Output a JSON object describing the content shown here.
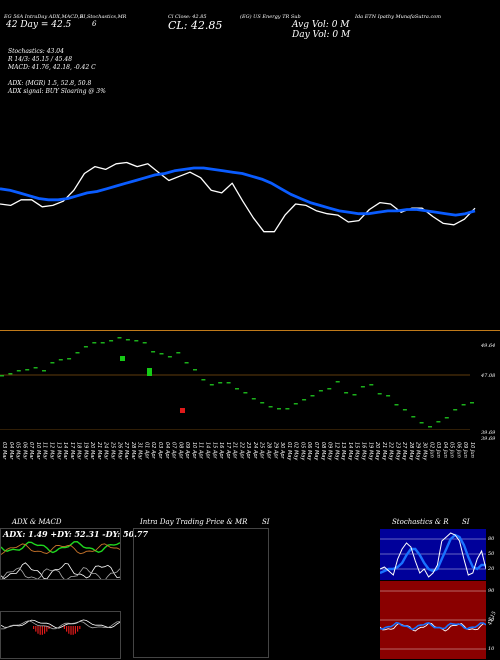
{
  "header": {
    "ticker_line": "EG 56A IntraDay ADX,MACD,B",
    "si_label": "SI,Stochastics,MR",
    "stats_line": "Cl Close: 42.85",
    "company": "(EG) US Energy TR Sub",
    "desc_right": "Ida ETN  Ipathy MunafaSutra.com",
    "price_range": "42 Day = 42.5",
    "num_6": "6",
    "cl_text": "CL: 42.85",
    "avg_vol": "Avg Vol: 0  M",
    "day_vol": "Day Vol: 0  M"
  },
  "indicators": {
    "stochastics": "Stochastics: 43.04",
    "r_line": "R         14/3: 45.15 / 45.48",
    "macd": "MACD: 41.76, 42.18, -0.42  C",
    "adx": "ADX:                    (MGR) 1.5, 52.8, 50.8",
    "adx_signal": "ADX  signal:                     BUY Sloaring @ 3%"
  },
  "volume_panel": {
    "right_labels": [
      "49.64",
      "47.08",
      "39.69",
      "39.69"
    ]
  },
  "dates": [
    "03 Mar",
    "04 Mar",
    "05 Mar",
    "06 Mar",
    "07 Mar",
    "10 Mar",
    "11 Mar",
    "12 Mar",
    "13 Mar",
    "14 Mar",
    "17 Mar",
    "18 Mar",
    "19 Mar",
    "20 Mar",
    "21 Mar",
    "24 Mar",
    "25 Mar",
    "26 Mar",
    "27 Mar",
    "28 Mar",
    "31 Mar",
    "01 Apr",
    "02 Apr",
    "03 Apr",
    "04 Apr",
    "07 Apr",
    "08 Apr",
    "09 Apr",
    "10 Apr",
    "11 Apr",
    "14 Apr",
    "15 Apr",
    "16 Apr",
    "17 Apr",
    "21 Apr",
    "22 Apr",
    "23 Apr",
    "24 Apr",
    "25 Apr",
    "28 Apr",
    "29 Apr",
    "30 Apr",
    "01 May",
    "02 May",
    "05 May",
    "06 May",
    "07 May",
    "08 May",
    "09 May",
    "12 May",
    "13 May",
    "14 May",
    "15 May",
    "16 May",
    "19 May",
    "20 May",
    "21 May",
    "22 May",
    "23 May",
    "27 May",
    "28 May",
    "29 May",
    "30 May",
    "02 Jun",
    "03 Jun",
    "04 Jun",
    "05 Jun",
    "06 Jun",
    "09 Jun",
    "10 Jun"
  ],
  "panels": {
    "adx_title": "ADX  & MACD",
    "adx_values": "ADX: 1.49  +DY: 52.31  -DY: 50.77",
    "intraday_title": "Intra  Day Trading Price  & MR",
    "intraday_si": "SI",
    "stoch_title": "Stochastics & R",
    "stoch_si": "SI",
    "stoch_ticks": [
      "80",
      "50",
      "20"
    ],
    "rsi_ticks": [
      "90",
      "50",
      "10"
    ],
    "rsi_value": "42.15"
  },
  "colors": {
    "price": "#ffffff",
    "ma": "#0a5cff",
    "bull": "#16c916",
    "bear": "#e01a1a",
    "separator": "#c07a1a",
    "stoch_bg": "#00009a",
    "rsi_bg": "#8a0000"
  },
  "chart_data": {
    "type": "line",
    "series": [
      {
        "name": "",
        "values": [
          43.6,
          43.5,
          43.9,
          43.9,
          43.4,
          43.5,
          43.8,
          44.6,
          45.8,
          46.3,
          46.1,
          46.5,
          46.6,
          46.3,
          46.5,
          45.9,
          45.3,
          45.6,
          45.9,
          45.5,
          44.6,
          44.4,
          45.1,
          43.8,
          42.6,
          41.6,
          41.6,
          42.8,
          43.6,
          43.5,
          43.1,
          42.9,
          42.8,
          42.3,
          42.4,
          43.2,
          43.7,
          43.6,
          43.0,
          43.3,
          43.3,
          42.7,
          42.2,
          42.1,
          42.5,
          43.3
        ]
      },
      {
        "name": "",
        "values": [
          44.7,
          44.6,
          44.4,
          44.2,
          44.0,
          43.9,
          43.9,
          44.0,
          44.2,
          44.4,
          44.5,
          44.7,
          44.9,
          45.1,
          45.3,
          45.5,
          45.7,
          45.8,
          46.0,
          46.1,
          46.2,
          46.2,
          46.1,
          46.0,
          45.9,
          45.8,
          45.6,
          45.4,
          45.1,
          44.7,
          44.3,
          44.0,
          43.7,
          43.5,
          43.3,
          43.1,
          43.0,
          42.9,
          42.9,
          43.0,
          43.1,
          43.1,
          43.2,
          43.2,
          43.1,
          43.0,
          42.9,
          42.8,
          42.9,
          43.1
        ]
      }
    ],
    "ylim": [
      41.0,
      47.5
    ]
  }
}
